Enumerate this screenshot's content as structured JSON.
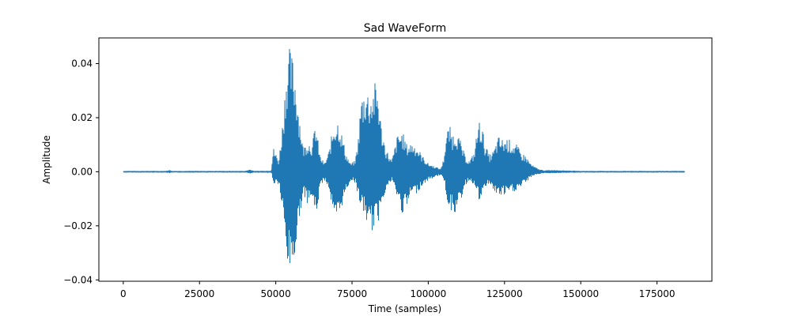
{
  "chart_data": {
    "type": "line",
    "title": "Sad WaveForm",
    "xlabel": "Time (samples)",
    "ylabel": "Amplitude",
    "xlim": [
      -8000,
      193000
    ],
    "ylim": [
      -0.0405,
      0.0495
    ],
    "x_ticks": [
      0,
      25000,
      50000,
      75000,
      100000,
      125000,
      150000,
      175000
    ],
    "x_tick_labels": [
      "0",
      "25000",
      "50000",
      "75000",
      "100000",
      "125000",
      "150000",
      "175000"
    ],
    "y_ticks": [
      -0.04,
      -0.02,
      0.0,
      0.02,
      0.04
    ],
    "y_tick_labels": [
      "−0.04",
      "−0.02",
      "0.00",
      "0.02",
      "0.04"
    ],
    "grid": false,
    "legend": false,
    "series": [
      {
        "color": "#1f77b4",
        "sample_range": [
          0,
          184000
        ],
        "envelope": {
          "x": [
            0,
            14000,
            15000,
            16000,
            40000,
            41500,
            43000,
            48500,
            49200,
            50000,
            51000,
            52500,
            53500,
            54500,
            55500,
            56500,
            57500,
            59000,
            60500,
            62000,
            63000,
            64500,
            66000,
            67500,
            69000,
            70500,
            71500,
            73000,
            74500,
            76000,
            77000,
            78000,
            79500,
            81000,
            82500,
            83500,
            84500,
            86000,
            88000,
            90000,
            91500,
            93000,
            94500,
            96000,
            98000,
            100000,
            102000,
            104000,
            105000,
            106000,
            107000,
            108000,
            109000,
            110000,
            111000,
            112000,
            113500,
            115000,
            116500,
            117500,
            118500,
            120000,
            121500,
            123000,
            124500,
            126000,
            127500,
            129000,
            130500,
            132000,
            133000,
            134000,
            136000,
            138000,
            141000,
            145000,
            150000,
            184000
          ],
          "upper": [
            0.0002,
            0.0002,
            0.0006,
            0.0002,
            0.0002,
            0.0008,
            0.0002,
            0.0003,
            0.009,
            0.007,
            0.004,
            0.022,
            0.04,
            0.046,
            0.043,
            0.036,
            0.024,
            0.009,
            0.012,
            0.01,
            0.019,
            0.006,
            0.003,
            0.008,
            0.018,
            0.02,
            0.015,
            0.007,
            0.003,
            0.004,
            0.012,
            0.028,
            0.032,
            0.029,
            0.033,
            0.032,
            0.018,
            0.009,
            0.004,
            0.014,
            0.015,
            0.01,
            0.011,
            0.01,
            0.006,
            0.003,
            0.002,
            0.001,
            0.0045,
            0.015,
            0.017,
            0.014,
            0.016,
            0.013,
            0.01,
            0.006,
            0.004,
            0.007,
            0.019,
            0.018,
            0.011,
            0.006,
            0.008,
            0.013,
            0.012,
            0.0125,
            0.011,
            0.01,
            0.007,
            0.006,
            0.004,
            0.0025,
            0.001,
            0.0004,
            0.0006,
            0.0004,
            0.0002,
            0.0002
          ],
          "lower": [
            -0.0002,
            -0.0002,
            -0.0004,
            -0.0002,
            -0.0002,
            -0.0006,
            -0.0002,
            -0.0003,
            -0.005,
            -0.004,
            -0.005,
            -0.02,
            -0.035,
            -0.037,
            -0.035,
            -0.031,
            -0.017,
            -0.009,
            -0.012,
            -0.01,
            -0.018,
            -0.005,
            -0.003,
            -0.007,
            -0.02,
            -0.018,
            -0.013,
            -0.007,
            -0.003,
            -0.004,
            -0.01,
            -0.014,
            -0.018,
            -0.023,
            -0.02,
            -0.019,
            -0.011,
            -0.007,
            -0.003,
            -0.011,
            -0.016,
            -0.013,
            -0.008,
            -0.008,
            -0.005,
            -0.003,
            -0.002,
            -0.001,
            -0.003,
            -0.01,
            -0.015,
            -0.014,
            -0.016,
            -0.013,
            -0.009,
            -0.005,
            -0.003,
            -0.005,
            -0.011,
            -0.01,
            -0.006,
            -0.004,
            -0.008,
            -0.009,
            -0.009,
            -0.0085,
            -0.0075,
            -0.007,
            -0.0055,
            -0.004,
            -0.0025,
            -0.0015,
            -0.0008,
            -0.0004,
            -0.0004,
            -0.0003,
            -0.0002,
            -0.0002
          ]
        }
      }
    ]
  }
}
